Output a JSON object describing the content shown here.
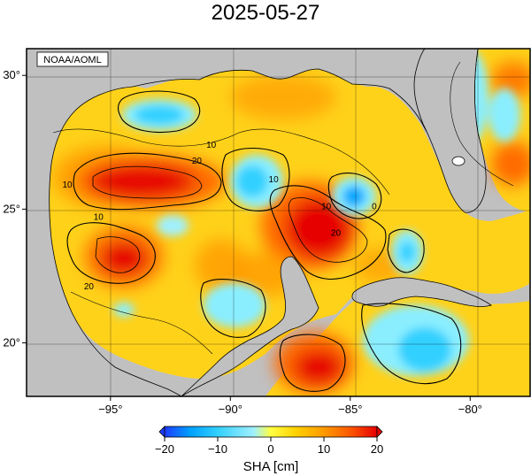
{
  "title": "2025-05-27",
  "credit": "NOAA/AOML",
  "map": {
    "lon_range": [
      -98.5,
      -77.5
    ],
    "lat_range": [
      18,
      31
    ],
    "x_ticks": [
      {
        "value": -95,
        "label": "−95°"
      },
      {
        "value": -90,
        "label": "−90°"
      },
      {
        "value": -85,
        "label": "−85°"
      },
      {
        "value": -80,
        "label": "−80°"
      }
    ],
    "y_ticks": [
      {
        "value": 20,
        "label": "20°"
      },
      {
        "value": 25,
        "label": "25°"
      },
      {
        "value": 30,
        "label": "30°"
      }
    ],
    "land_color": "#c0c0c0",
    "contour_labels": [
      {
        "text": "10",
        "lon": -90.8,
        "lat": 27.3
      },
      {
        "text": "20",
        "lon": -91.4,
        "lat": 26.7
      },
      {
        "text": "10",
        "lon": -96.8,
        "lat": 25.8
      },
      {
        "text": "10",
        "lon": -95.5,
        "lat": 24.6
      },
      {
        "text": "20",
        "lon": -95.9,
        "lat": 22.0
      },
      {
        "text": "10",
        "lon": -88.2,
        "lat": 26.0
      },
      {
        "text": "10",
        "lon": -86.0,
        "lat": 25.0
      },
      {
        "text": "20",
        "lon": -85.6,
        "lat": 24.0
      },
      {
        "text": "0",
        "lon": -84.0,
        "lat": 25.0
      }
    ]
  },
  "colorbar": {
    "label": "SHA [cm]",
    "min": -20,
    "max": 20,
    "ticks": [
      {
        "value": -20,
        "label": "−20"
      },
      {
        "value": -10,
        "label": "−10"
      },
      {
        "value": 0,
        "label": "0"
      },
      {
        "value": 10,
        "label": "10"
      },
      {
        "value": 20,
        "label": "20"
      }
    ],
    "colors": [
      "#1e3cff",
      "#00a0ff",
      "#33d0ff",
      "#a0f0ff",
      "#ffff40",
      "#ffd000",
      "#ff9a00",
      "#ff5a00",
      "#e60000"
    ]
  }
}
